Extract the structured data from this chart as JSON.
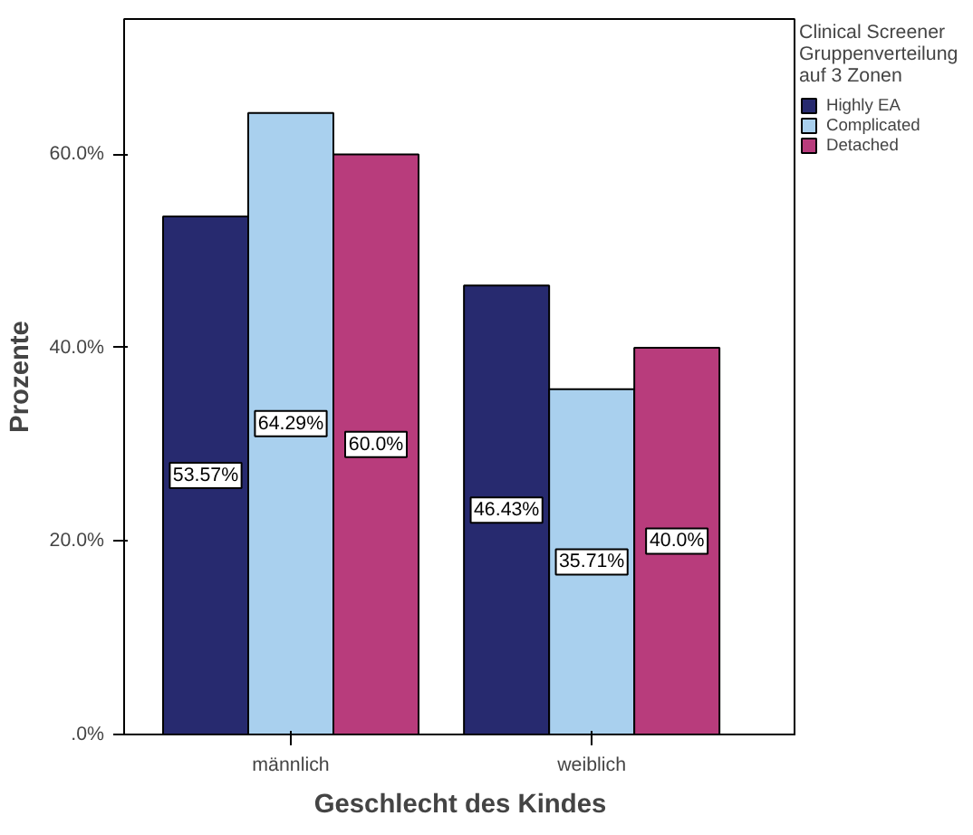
{
  "chart_data": {
    "type": "bar",
    "xlabel": "Geschlecht des Kindes",
    "ylabel": "Prozente",
    "legend_title": "Clinical Screener\nGruppenverteilung\nauf 3 Zonen",
    "categories": [
      "männlich",
      "weiblich"
    ],
    "series": [
      {
        "name": "Highly EA",
        "color": "#272a6f",
        "values": [
          53.57,
          46.43
        ],
        "value_labels": [
          "53.57%",
          "46.43%"
        ]
      },
      {
        "name": "Complicated",
        "color": "#a9d0ee",
        "values": [
          64.29,
          35.71
        ],
        "value_labels": [
          "64.29%",
          "35.71%"
        ]
      },
      {
        "name": "Detached",
        "color": "#b83c7c",
        "values": [
          60.0,
          40.0
        ],
        "value_labels": [
          "60.0%",
          "40.0%"
        ]
      }
    ],
    "ylim": [
      0,
      74
    ],
    "yticks": [
      {
        "value": 0,
        "label": ".0%"
      },
      {
        "value": 20,
        "label": "20.0%"
      },
      {
        "value": 40,
        "label": "40.0%"
      },
      {
        "value": 60,
        "label": "60.0%"
      }
    ],
    "grid": false,
    "legend": "top right"
  }
}
